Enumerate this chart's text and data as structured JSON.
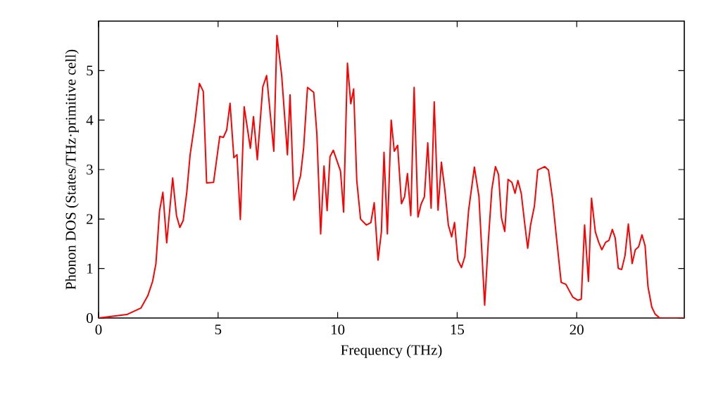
{
  "chart_data": {
    "type": "line",
    "xlabel": "Frequency (THz)",
    "ylabel": "Phonon DOS (States/THz·primitive cell)",
    "xlim": [
      0,
      24.5
    ],
    "ylim": [
      0,
      6
    ],
    "xticks": [
      0,
      5,
      10,
      15,
      20
    ],
    "yticks": [
      0,
      1,
      2,
      3,
      4,
      5
    ],
    "marker": "none",
    "line_style": "solid",
    "series": [
      {
        "color": "#ff0000",
        "x": [
          0,
          1.18,
          1.77,
          2.06,
          2.26,
          2.4,
          2.55,
          2.69,
          2.85,
          3.1,
          3.26,
          3.4,
          3.54,
          3.69,
          3.83,
          4.03,
          4.22,
          4.38,
          4.52,
          4.81,
          5.07,
          5.22,
          5.36,
          5.5,
          5.66,
          5.79,
          5.93,
          6.09,
          6.35,
          6.48,
          6.64,
          6.87,
          7.03,
          7.33,
          7.46,
          7.66,
          7.9,
          8.01,
          8.17,
          8.45,
          8.58,
          8.74,
          9.0,
          9.13,
          9.29,
          9.43,
          9.56,
          9.68,
          9.82,
          10.12,
          10.25,
          10.41,
          10.55,
          10.67,
          10.8,
          10.96,
          11.2,
          11.39,
          11.53,
          11.69,
          11.83,
          11.94,
          12.08,
          12.24,
          12.37,
          12.51,
          12.67,
          12.8,
          12.92,
          13.06,
          13.2,
          13.36,
          13.49,
          13.63,
          13.77,
          13.91,
          14.04,
          14.2,
          14.34,
          14.48,
          14.63,
          14.77,
          14.89,
          15.03,
          15.18,
          15.32,
          15.48,
          15.72,
          15.91,
          16.15,
          16.3,
          16.45,
          16.6,
          16.73,
          16.85,
          16.99,
          17.13,
          17.29,
          17.42,
          17.54,
          17.68,
          17.82,
          17.95,
          18.07,
          18.23,
          18.37,
          18.66,
          18.82,
          18.99,
          19.15,
          19.35,
          19.55,
          19.68,
          19.84,
          20.04,
          20.19,
          20.33,
          20.49,
          20.62,
          20.78,
          20.92,
          21.05,
          21.21,
          21.35,
          21.49,
          21.61,
          21.74,
          21.88,
          22.02,
          22.16,
          22.32,
          22.45,
          22.59,
          22.73,
          22.86,
          22.98,
          23.14,
          23.28,
          23.47,
          24.5
        ],
        "values": [
          0,
          0.07,
          0.2,
          0.45,
          0.74,
          1.1,
          2.16,
          2.54,
          1.52,
          2.83,
          2.07,
          1.83,
          1.97,
          2.54,
          3.3,
          3.96,
          4.74,
          4.58,
          2.73,
          2.74,
          3.67,
          3.65,
          3.8,
          4.34,
          3.24,
          3.3,
          1.99,
          4.27,
          3.43,
          4.07,
          3.2,
          4.67,
          4.9,
          3.37,
          5.71,
          4.9,
          3.3,
          4.51,
          2.38,
          2.88,
          3.45,
          4.66,
          4.56,
          3.73,
          1.7,
          3.07,
          2.17,
          3.26,
          3.39,
          2.97,
          2.14,
          5.15,
          4.33,
          4.63,
          2.78,
          2.0,
          1.88,
          1.93,
          2.33,
          1.17,
          1.74,
          3.35,
          1.7,
          4.0,
          3.37,
          3.49,
          2.31,
          2.45,
          2.92,
          2.07,
          4.66,
          2.04,
          2.3,
          2.45,
          3.54,
          2.22,
          4.37,
          2.18,
          3.15,
          2.61,
          1.88,
          1.64,
          1.93,
          1.17,
          1.02,
          1.24,
          2.18,
          3.05,
          2.46,
          0.26,
          1.53,
          2.6,
          3.06,
          2.9,
          2.03,
          1.75,
          2.8,
          2.74,
          2.52,
          2.78,
          2.52,
          1.93,
          1.41,
          1.88,
          2.26,
          2.99,
          3.06,
          2.99,
          2.4,
          1.64,
          0.72,
          0.68,
          0.56,
          0.42,
          0.36,
          0.38,
          1.88,
          0.74,
          2.42,
          1.74,
          1.53,
          1.38,
          1.53,
          1.57,
          1.79,
          1.62,
          1.0,
          0.98,
          1.26,
          1.9,
          1.1,
          1.38,
          1.44,
          1.68,
          1.46,
          0.64,
          0.22,
          0.08,
          0,
          0
        ]
      }
    ]
  }
}
